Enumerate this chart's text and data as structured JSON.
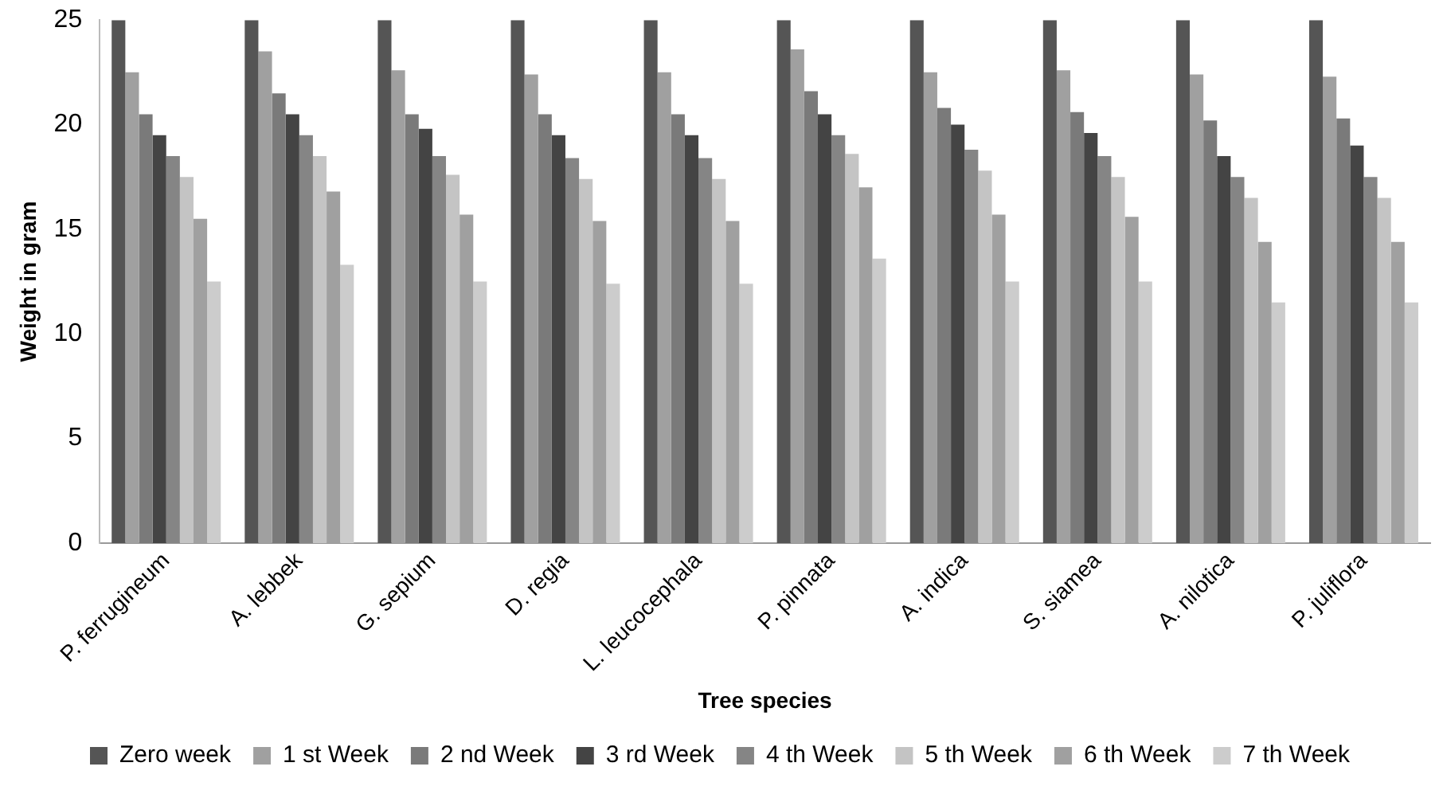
{
  "chart_data": {
    "type": "bar",
    "xlabel": "Tree species",
    "ylabel": "Weight in gram",
    "categories": [
      "P. ferrugineum",
      "A. lebbek",
      "G. sepium",
      "D. regia",
      "L. leucocephala",
      "P. pinnata",
      "A. indica",
      "S. siamea",
      "A. nilotica",
      "P. juliflora"
    ],
    "series": [
      {
        "name": "Zero week",
        "color": "#555555",
        "values": [
          25,
          25,
          25,
          25,
          25,
          25,
          25,
          25,
          25,
          25
        ]
      },
      {
        "name": "1 st Week",
        "color": "#a0a0a0",
        "values": [
          22.5,
          23.5,
          22.6,
          22.4,
          22.5,
          23.6,
          22.5,
          22.6,
          22.4,
          22.3
        ]
      },
      {
        "name": "2 nd Week",
        "color": "#7a7a7a",
        "values": [
          20.5,
          21.5,
          20.5,
          20.5,
          20.5,
          21.6,
          20.8,
          20.6,
          20.2,
          20.3
        ]
      },
      {
        "name": "3 rd Week",
        "color": "#444444",
        "values": [
          19.5,
          20.5,
          19.8,
          19.5,
          19.5,
          20.5,
          20,
          19.6,
          18.5,
          19
        ]
      },
      {
        "name": "4 th Week",
        "color": "#858585",
        "values": [
          18.5,
          19.5,
          18.5,
          18.4,
          18.4,
          19.5,
          18.8,
          18.5,
          17.5,
          17.5
        ]
      },
      {
        "name": "5 th Week",
        "color": "#c4c4c4",
        "values": [
          17.5,
          18.5,
          17.6,
          17.4,
          17.4,
          18.6,
          17.8,
          17.5,
          16.5,
          16.5
        ]
      },
      {
        "name": "6 th Week",
        "color": "#a0a0a0",
        "values": [
          15.5,
          16.8,
          15.7,
          15.4,
          15.4,
          17,
          15.7,
          15.6,
          14.4,
          14.4
        ]
      },
      {
        "name": "7 th Week",
        "color": "#cccccc",
        "values": [
          12.5,
          13.3,
          12.5,
          12.4,
          12.4,
          13.6,
          12.5,
          12.5,
          11.5,
          11.5
        ]
      }
    ],
    "ylim": [
      0,
      25
    ],
    "yticks": [
      0,
      5,
      10,
      15,
      20,
      25
    ],
    "grid": false,
    "legend": "bottom"
  }
}
